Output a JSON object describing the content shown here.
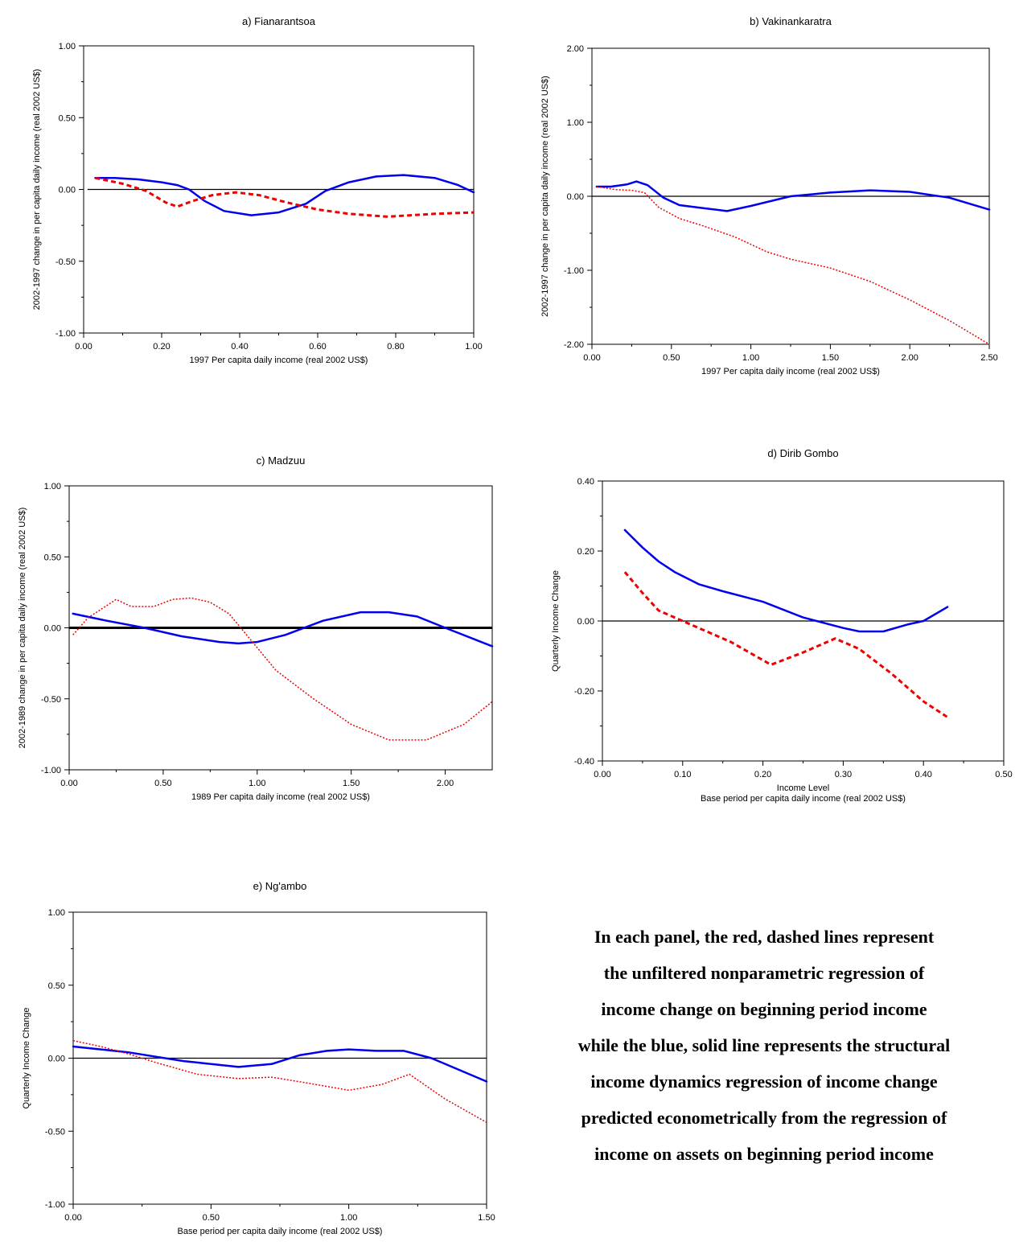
{
  "caption": {
    "lines": [
      "In each panel, the red, dashed lines represent",
      "the unfiltered nonparametric regression of",
      "income change on beginning period income",
      "while the blue, solid line represents the structural",
      "income dynamics regression of income change",
      "predicted econometrically from the regression of",
      "income on assets on beginning period income"
    ]
  },
  "colors": {
    "structural": "#0000ee",
    "unfiltered": "#ee0000",
    "axis": "#000000"
  },
  "chart_data": [
    {
      "id": "a",
      "type": "line",
      "title": "a) Fianarantsoa",
      "xlabel": "1997 Per capita daily income (real 2002 US$)",
      "xlabel2": "",
      "ylabel": "2002-1997 change in per capita daily income (real 2002 US$)",
      "xlim": [
        0,
        1.0
      ],
      "ylim": [
        -1.0,
        1.0
      ],
      "xticks": [
        0,
        0.2,
        0.4,
        0.6,
        0.8,
        1.0
      ],
      "xtick_labels": [
        "0.00",
        "0.20",
        "0.40",
        "0.60",
        "0.80",
        "1.00"
      ],
      "yticks": [
        -1.0,
        -0.5,
        0,
        0.5,
        1.0
      ],
      "ytick_labels": [
        "-1.00",
        "-0.50",
        "0.00",
        "0.50",
        "1.00"
      ],
      "zero_line_x": [
        0.01,
        1.0
      ],
      "series": [
        {
          "style": "solid",
          "x": [
            0.03,
            0.08,
            0.14,
            0.2,
            0.24,
            0.27,
            0.31,
            0.36,
            0.43,
            0.5,
            0.57,
            0.62,
            0.68,
            0.75,
            0.82,
            0.9,
            0.96,
            1.0
          ],
          "y": [
            0.08,
            0.08,
            0.07,
            0.05,
            0.03,
            0.0,
            -0.08,
            -0.15,
            -0.18,
            -0.16,
            -0.1,
            -0.01,
            0.05,
            0.09,
            0.1,
            0.08,
            0.03,
            -0.02
          ]
        },
        {
          "style": "dashed",
          "x": [
            0.03,
            0.1,
            0.16,
            0.21,
            0.24,
            0.28,
            0.33,
            0.39,
            0.45,
            0.52,
            0.6,
            0.68,
            0.78,
            0.9,
            1.0
          ],
          "y": [
            0.08,
            0.04,
            -0.01,
            -0.09,
            -0.12,
            -0.08,
            -0.04,
            -0.02,
            -0.04,
            -0.09,
            -0.14,
            -0.17,
            -0.19,
            -0.17,
            -0.16
          ]
        }
      ]
    },
    {
      "id": "b",
      "type": "line",
      "title": "b) Vakinankaratra",
      "xlabel": "1997 Per capita daily income (real 2002 US$)",
      "xlabel2": "",
      "ylabel": "2002-1997 change in per capita daily income (real 2002 US$)",
      "xlim": [
        0,
        2.5
      ],
      "ylim": [
        -2.0,
        2.0
      ],
      "xticks": [
        0,
        0.5,
        1.0,
        1.5,
        2.0,
        2.5
      ],
      "xtick_labels": [
        "0.00",
        "0.50",
        "1.00",
        "1.50",
        "2.00",
        "2.50"
      ],
      "yticks": [
        -2.0,
        -1.0,
        0,
        1.0,
        2.0
      ],
      "ytick_labels": [
        "-2.00",
        "-1.00",
        "0.00",
        "1.00",
        "2.00"
      ],
      "zero_line_x": [
        0,
        2.5
      ],
      "series": [
        {
          "style": "solid",
          "x": [
            0.03,
            0.12,
            0.22,
            0.28,
            0.35,
            0.45,
            0.55,
            0.7,
            0.85,
            1.0,
            1.25,
            1.5,
            1.75,
            2.0,
            2.25,
            2.5
          ],
          "y": [
            0.13,
            0.13,
            0.16,
            0.2,
            0.15,
            -0.02,
            -0.12,
            -0.16,
            -0.2,
            -0.13,
            0.0,
            0.05,
            0.08,
            0.06,
            -0.02,
            -0.18
          ]
        },
        {
          "style": "dotted",
          "x": [
            0.03,
            0.15,
            0.25,
            0.33,
            0.42,
            0.55,
            0.7,
            0.9,
            1.1,
            1.25,
            1.5,
            1.75,
            2.0,
            2.25,
            2.5
          ],
          "y": [
            0.13,
            0.09,
            0.08,
            0.05,
            -0.15,
            -0.3,
            -0.4,
            -0.55,
            -0.75,
            -0.85,
            -0.97,
            -1.15,
            -1.4,
            -1.68,
            -2.0
          ]
        }
      ]
    },
    {
      "id": "c",
      "type": "line",
      "title": "c) Madzuu",
      "xlabel": "1989 Per capita daily income (real 2002 US$)",
      "xlabel2": "",
      "ylabel": "2002-1989 change in per capita daily income (real 2002 US$)",
      "xlim": [
        0,
        2.25
      ],
      "ylim": [
        -1.0,
        1.0
      ],
      "xticks": [
        0,
        0.5,
        1.0,
        1.5,
        2.0
      ],
      "xtick_labels": [
        "0.00",
        "0.50",
        "1.00",
        "1.50",
        "2.00"
      ],
      "yticks": [
        -1.0,
        -0.5,
        0,
        0.5,
        1.0
      ],
      "ytick_labels": [
        "-1.00",
        "-0.50",
        "0.00",
        "0.50",
        "1.00"
      ],
      "zero_line_x": [
        0,
        2.25
      ],
      "zero_line_bold": true,
      "series": [
        {
          "style": "solid",
          "x": [
            0.02,
            0.2,
            0.4,
            0.6,
            0.8,
            0.9,
            1.0,
            1.15,
            1.35,
            1.55,
            1.7,
            1.85,
            2.0,
            2.25
          ],
          "y": [
            0.1,
            0.05,
            0.0,
            -0.06,
            -0.1,
            -0.11,
            -0.1,
            -0.05,
            0.05,
            0.11,
            0.11,
            0.08,
            0.0,
            -0.13
          ]
        },
        {
          "style": "dotted",
          "x": [
            0.02,
            0.1,
            0.25,
            0.33,
            0.45,
            0.55,
            0.65,
            0.75,
            0.85,
            0.95,
            1.1,
            1.3,
            1.5,
            1.7,
            1.9,
            2.1,
            2.25
          ],
          "y": [
            -0.05,
            0.07,
            0.2,
            0.15,
            0.15,
            0.2,
            0.21,
            0.18,
            0.1,
            -0.06,
            -0.3,
            -0.5,
            -0.68,
            -0.79,
            -0.79,
            -0.68,
            -0.52
          ]
        }
      ]
    },
    {
      "id": "d",
      "type": "line",
      "title": "d) Dirib Gombo",
      "xlabel": "Income Level",
      "xlabel2": "Base period per capita daily income (real 2002 US$)",
      "ylabel": "Quarterly Income Change",
      "xlim": [
        0,
        0.5
      ],
      "ylim": [
        -0.4,
        0.4
      ],
      "xticks": [
        0,
        0.1,
        0.2,
        0.3,
        0.4,
        0.5
      ],
      "xtick_labels": [
        "0.00",
        "0.10",
        "0.20",
        "0.30",
        "0.40",
        "0.50"
      ],
      "yticks": [
        -0.4,
        -0.2,
        0,
        0.2,
        0.4
      ],
      "ytick_labels": [
        "-0.40",
        "-0.20",
        "0.00",
        "0.20",
        "0.40"
      ],
      "zero_line_x": [
        0,
        0.5
      ],
      "series": [
        {
          "style": "solid",
          "x": [
            0.028,
            0.05,
            0.07,
            0.09,
            0.12,
            0.15,
            0.2,
            0.25,
            0.3,
            0.32,
            0.35,
            0.38,
            0.4,
            0.43
          ],
          "y": [
            0.26,
            0.21,
            0.17,
            0.14,
            0.105,
            0.085,
            0.055,
            0.01,
            -0.02,
            -0.03,
            -0.03,
            -0.01,
            0.0,
            0.04
          ]
        },
        {
          "style": "dashed",
          "x": [
            0.028,
            0.05,
            0.07,
            0.1,
            0.13,
            0.16,
            0.21,
            0.25,
            0.29,
            0.32,
            0.36,
            0.4,
            0.43
          ],
          "y": [
            0.14,
            0.08,
            0.03,
            0.0,
            -0.03,
            -0.06,
            -0.125,
            -0.09,
            -0.05,
            -0.08,
            -0.15,
            -0.23,
            -0.275
          ]
        }
      ]
    },
    {
      "id": "e",
      "type": "line",
      "title": "e) Ng'ambo",
      "xlabel": "Base period per capita daily income (real 2002 US$)",
      "xlabel2": "",
      "ylabel": "Quarterly Income Change",
      "xlim": [
        0,
        1.5
      ],
      "ylim": [
        -1.0,
        1.0
      ],
      "xticks": [
        0,
        0.5,
        1.0,
        1.5
      ],
      "xtick_labels": [
        "0.00",
        "0.50",
        "1.00",
        "1.50"
      ],
      "yticks": [
        -1.0,
        -0.5,
        0,
        0.5,
        1.0
      ],
      "ytick_labels": [
        "-1.00",
        "-0.50",
        "0.00",
        "0.50",
        "1.00"
      ],
      "zero_line_x": [
        0,
        1.5
      ],
      "series": [
        {
          "style": "solid",
          "x": [
            0.0,
            0.1,
            0.2,
            0.3,
            0.4,
            0.45,
            0.6,
            0.72,
            0.82,
            0.92,
            1.0,
            1.1,
            1.2,
            1.3,
            1.5
          ],
          "y": [
            0.08,
            0.06,
            0.04,
            0.01,
            -0.02,
            -0.03,
            -0.06,
            -0.04,
            0.02,
            0.05,
            0.06,
            0.05,
            0.05,
            0.0,
            -0.16
          ]
        },
        {
          "style": "dotted",
          "x": [
            0.0,
            0.1,
            0.2,
            0.3,
            0.45,
            0.6,
            0.72,
            0.85,
            1.0,
            1.12,
            1.22,
            1.35,
            1.5
          ],
          "y": [
            0.12,
            0.08,
            0.03,
            -0.03,
            -0.11,
            -0.14,
            -0.13,
            -0.17,
            -0.22,
            -0.18,
            -0.11,
            -0.28,
            -0.44
          ]
        }
      ]
    }
  ]
}
